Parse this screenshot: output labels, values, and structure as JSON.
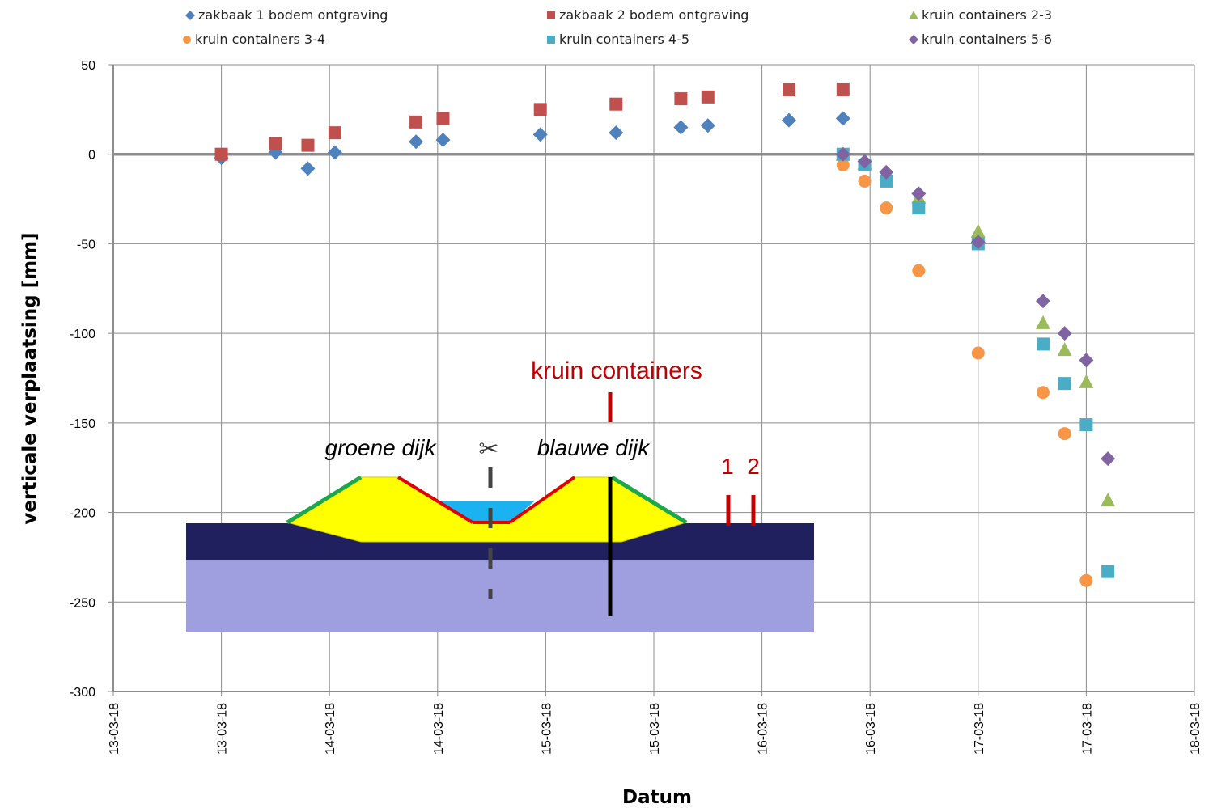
{
  "chart_data": {
    "type": "scatter",
    "xlabel": "Datum",
    "ylabel": "verticale verplaatsing [mm]",
    "ylim": [
      -300,
      50
    ],
    "yticks": [
      50,
      0,
      -50,
      -100,
      -150,
      -200,
      -250,
      -300
    ],
    "xlim": [
      0,
      10
    ],
    "xtick_labels": [
      "13-03-18",
      "13-03-18",
      "14-03-18",
      "14-03-18",
      "15-03-18",
      "15-03-18",
      "16-03-18",
      "16-03-18",
      "17-03-18",
      "17-03-18",
      "18-03-18"
    ],
    "grid": true,
    "legend_position": "top",
    "series": [
      {
        "name": "zakbaak 1 bodem ontgraving",
        "marker": "diamond",
        "color": "#4f81bd",
        "points": [
          [
            1.0,
            -2
          ],
          [
            1.5,
            1
          ],
          [
            1.8,
            -8
          ],
          [
            2.05,
            1
          ],
          [
            2.8,
            7
          ],
          [
            3.05,
            8
          ],
          [
            3.95,
            11
          ],
          [
            4.65,
            12
          ],
          [
            5.25,
            15
          ],
          [
            5.5,
            16
          ],
          [
            6.25,
            19
          ],
          [
            6.75,
            20
          ]
        ]
      },
      {
        "name": "zakbaak 2 bodem ontgraving",
        "marker": "square",
        "color": "#c0504d",
        "points": [
          [
            1.0,
            0
          ],
          [
            1.5,
            6
          ],
          [
            1.8,
            5
          ],
          [
            2.05,
            12
          ],
          [
            2.8,
            18
          ],
          [
            3.05,
            20
          ],
          [
            3.95,
            25
          ],
          [
            4.65,
            28
          ],
          [
            5.25,
            31
          ],
          [
            5.5,
            32
          ],
          [
            6.25,
            36
          ],
          [
            6.75,
            36
          ]
        ]
      },
      {
        "name": "kruin containers 2-3",
        "marker": "triangle",
        "color": "#9bbb59",
        "points": [
          [
            6.75,
            0
          ],
          [
            6.95,
            -5
          ],
          [
            7.15,
            -11
          ],
          [
            7.45,
            -24
          ],
          [
            8.0,
            -43
          ],
          [
            8.6,
            -94
          ],
          [
            8.8,
            -109
          ],
          [
            9.0,
            -127
          ],
          [
            9.2,
            -193
          ]
        ]
      },
      {
        "name": "kruin containers 3-4",
        "marker": "circle",
        "color": "#f79646",
        "points": [
          [
            6.75,
            0
          ],
          [
            6.75,
            -6
          ],
          [
            6.95,
            -15
          ],
          [
            7.15,
            -30
          ],
          [
            7.45,
            -65
          ],
          [
            8.0,
            -111
          ],
          [
            8.6,
            -133
          ],
          [
            8.8,
            -156
          ],
          [
            9.0,
            -238
          ]
        ]
      },
      {
        "name": "kruin containers 4-5",
        "marker": "square",
        "color": "#4bacc6",
        "points": [
          [
            6.75,
            0
          ],
          [
            6.95,
            -6
          ],
          [
            7.15,
            -15
          ],
          [
            7.45,
            -30
          ],
          [
            8.0,
            -50
          ],
          [
            8.6,
            -106
          ],
          [
            8.8,
            -128
          ],
          [
            9.0,
            -151
          ],
          [
            9.2,
            -233
          ]
        ]
      },
      {
        "name": "kruin containers 5-6",
        "marker": "diamond",
        "color": "#8064a2",
        "points": [
          [
            6.75,
            0
          ],
          [
            6.95,
            -4
          ],
          [
            7.15,
            -10
          ],
          [
            7.45,
            -22
          ],
          [
            8.0,
            -49
          ],
          [
            8.6,
            -82
          ],
          [
            8.8,
            -100
          ],
          [
            9.0,
            -115
          ],
          [
            9.2,
            -170
          ]
        ]
      }
    ]
  },
  "diagram": {
    "label_kruin": "kruin containers",
    "label_groene": "groene dijk",
    "label_blauwe": "blauwe dijk",
    "label_1": "1",
    "label_2": "2",
    "scissors": "✂"
  }
}
